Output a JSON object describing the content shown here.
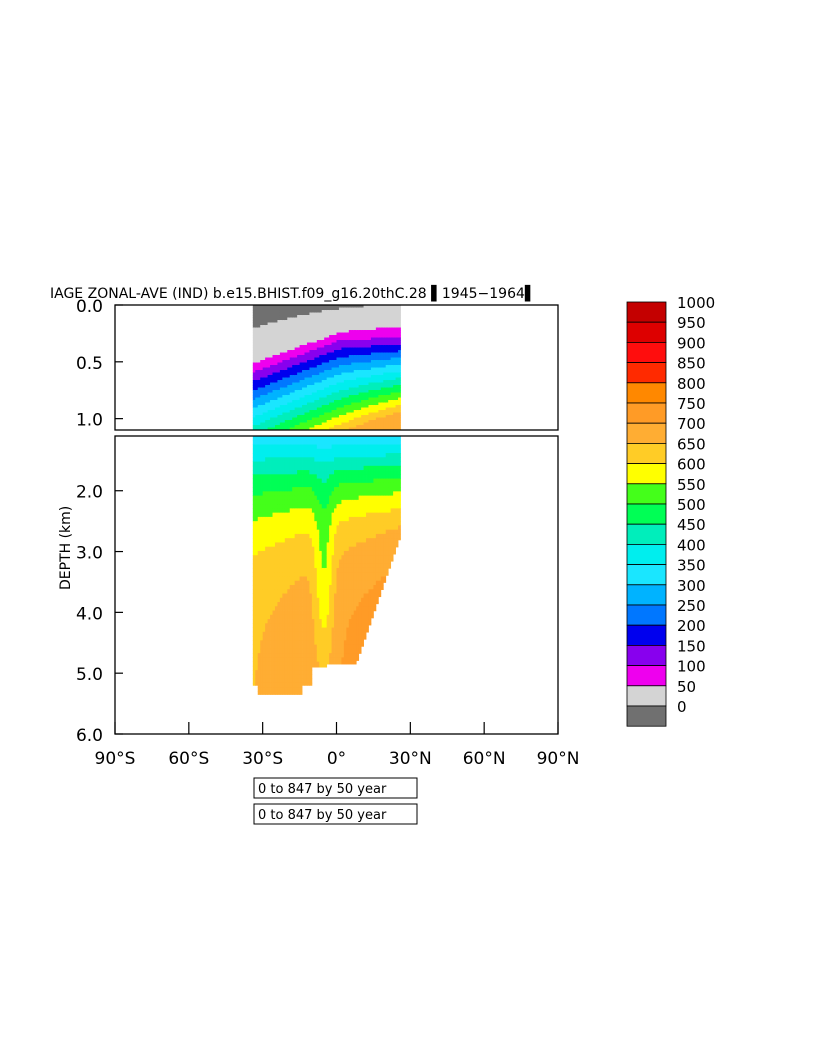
{
  "chart_data": {
    "type": "heatmap",
    "title": "IAGE ZONAL-AVE (IND) b.e15.BHIST.f09_g16.20thC.28 \u00001945-1964\u0000",
    "title_display": "IAGE ZONAL-AVE (IND) b.e15.BHIST.f09_g16.20thC.28 ▌1945−1964▌",
    "ylabel": "DEPTH (km)",
    "xlabel": "",
    "x_ticks": [
      "90°S",
      "60°S",
      "30°S",
      "0°",
      "30°N",
      "60°N",
      "90°N"
    ],
    "x_tick_values": [
      -90,
      -60,
      -30,
      0,
      30,
      60,
      90
    ],
    "xlim": [
      -90,
      90
    ],
    "upper_panel": {
      "ylim": [
        0.0,
        1.1
      ],
      "y_ticks": [
        "0.0",
        "0.5",
        "1.0"
      ],
      "y_tick_values": [
        0.0,
        0.5,
        1.0
      ]
    },
    "lower_panel": {
      "ylim": [
        1.1,
        6.0
      ],
      "y_ticks": [
        "2.0",
        "3.0",
        "4.0",
        "5.0",
        "6.0"
      ],
      "y_tick_values": [
        2.0,
        3.0,
        4.0,
        5.0,
        6.0
      ]
    },
    "data_lat_range": [
      -34,
      26
    ],
    "colorbar": {
      "labels": [
        "1000",
        "950",
        "900",
        "850",
        "800",
        "750",
        "700",
        "650",
        "600",
        "550",
        "500",
        "450",
        "400",
        "350",
        "300",
        "250",
        "200",
        "150",
        "100",
        "50",
        "0"
      ],
      "colors": [
        "#c40000",
        "#dd0000",
        "#ff0d0d",
        "#ff2a00",
        "#ff8800",
        "#ff9b26",
        "#ffad33",
        "#ffcc26",
        "#ffff00",
        "#44ff1a",
        "#00ff55",
        "#00eebb",
        "#00eeee",
        "#1ae6ff",
        "#00b3ff",
        "#0077ff",
        "#0000ee",
        "#8800ee",
        "#ee00ee",
        "#d4d4d4",
        "#707070"
      ]
    },
    "info_boxes": [
      "0 to 847 by 50 year",
      "0 to 847 by 50 year"
    ]
  }
}
